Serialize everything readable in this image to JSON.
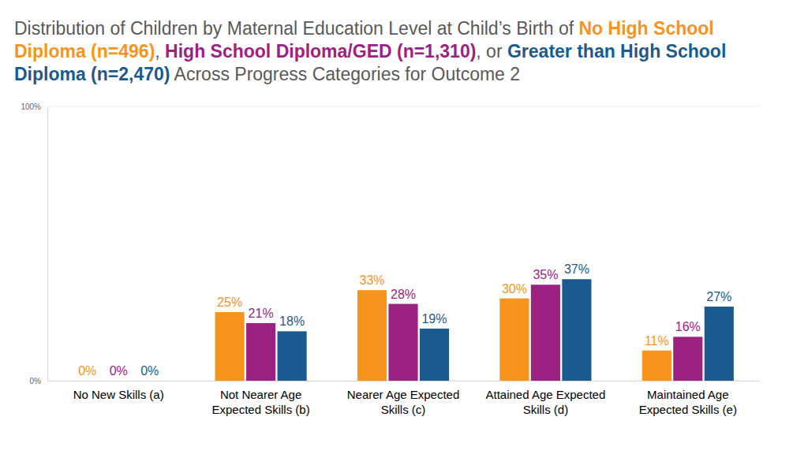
{
  "chart_data": {
    "type": "bar",
    "title": "Distribution of Children by Maternal Education Level at Child’s Birth of No High School Diploma (n=496), High School Diploma/GED (n=1,310), or Greater than High School Diploma (n=2,470) Across Progress Categories for Outcome 2",
    "categories": [
      "No New Skills (a)",
      "Not Nearer Age Expected Skills (b)",
      "Nearer Age Expected Skills (c)",
      "Attained Age Expected Skills (d)",
      "Maintained Age Expected Skills (e)"
    ],
    "series": [
      {
        "name": "No High School Diploma (n=496)",
        "color": "#f7941d",
        "values": [
          0,
          25,
          33,
          30,
          11
        ],
        "value_labels": [
          "0%",
          "25%",
          "33%",
          "30%",
          "11%"
        ]
      },
      {
        "name": "High School Diploma/GED (n=1,310)",
        "color": "#9b2281",
        "values": [
          0,
          21,
          28,
          35,
          16
        ],
        "value_labels": [
          "0%",
          "21%",
          "28%",
          "35%",
          "16%"
        ]
      },
      {
        "name": "Greater than High School Diploma (n=2,470)",
        "color": "#1a5a8e",
        "values": [
          0,
          18,
          19,
          37,
          27
        ],
        "value_labels": [
          "0%",
          "18%",
          "19%",
          "37%",
          "27%"
        ]
      }
    ],
    "ylim": [
      0,
      100
    ],
    "yticks": [
      {
        "value": 0,
        "label": "0%"
      },
      {
        "value": 100,
        "label": "100%"
      }
    ],
    "grid": true,
    "data_labels": true
  }
}
